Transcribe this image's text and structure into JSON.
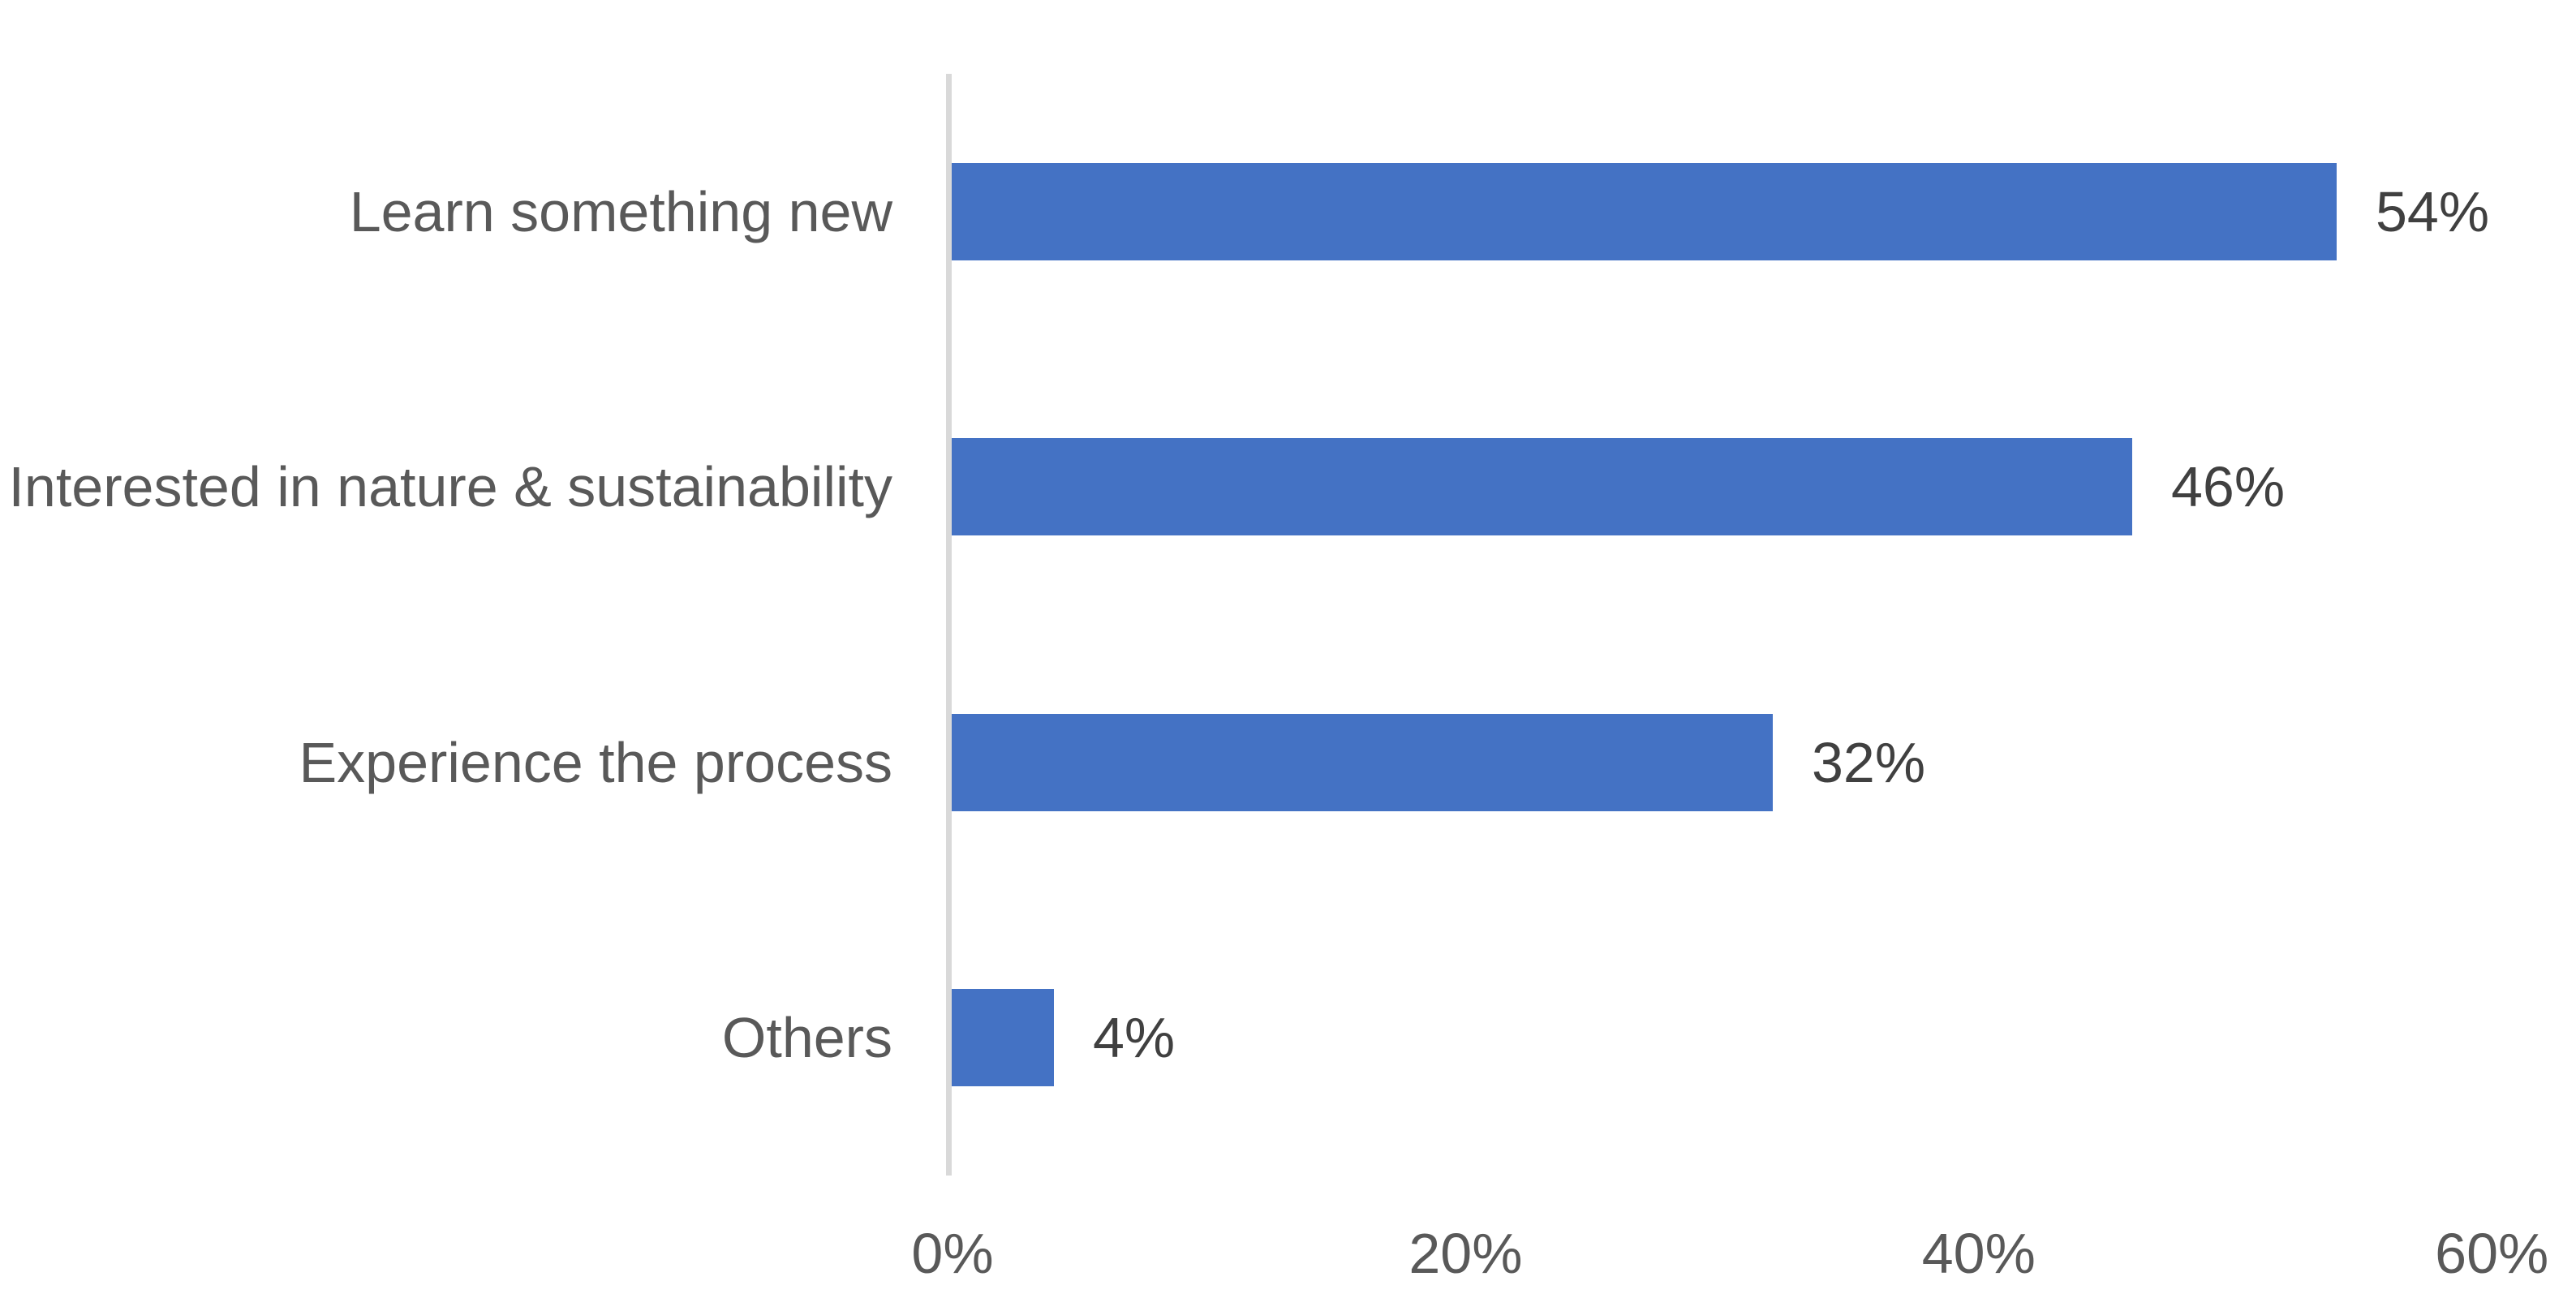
{
  "chart_data": {
    "type": "bar",
    "orientation": "horizontal",
    "title": "",
    "xlabel": "",
    "ylabel": "",
    "categories": [
      "Learn something new",
      "Interested in nature & sustainability",
      "Experience the process",
      "Others"
    ],
    "values": [
      54,
      46,
      32,
      4
    ],
    "value_labels": [
      "54%",
      "46%",
      "32%",
      "4%"
    ],
    "x_ticks": [
      {
        "value": 0,
        "label": "0%"
      },
      {
        "value": 20,
        "label": "20%"
      },
      {
        "value": 40,
        "label": "40%"
      },
      {
        "value": 60,
        "label": "60%"
      }
    ],
    "xlim": [
      0,
      60
    ],
    "grid": false,
    "legend": false,
    "colors": {
      "bar": "#4472C4",
      "axis_line": "#D9D9D9",
      "category_label_text": "#595959",
      "tick_label_text": "#595959",
      "value_label_text": "#404040",
      "background": "#FFFFFF"
    }
  }
}
